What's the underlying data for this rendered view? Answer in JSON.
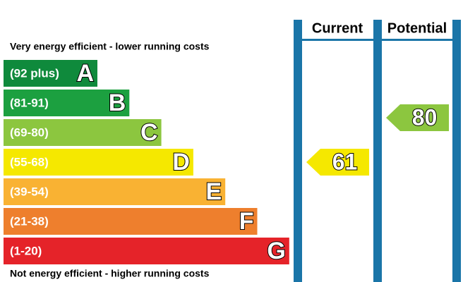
{
  "header": {
    "top_caption": "Very energy efficient - lower running costs",
    "bottom_caption": "Not energy efficient - higher running costs",
    "current_label": "Current",
    "potential_label": "Potential"
  },
  "bands": [
    {
      "range": "(92 plus)",
      "letter": "A",
      "color": "#0f8a3c"
    },
    {
      "range": "(81-91)",
      "letter": "B",
      "color": "#1ca040"
    },
    {
      "range": "(69-80)",
      "letter": "C",
      "color": "#8cc63f"
    },
    {
      "range": "(55-68)",
      "letter": "D",
      "color": "#f5e800"
    },
    {
      "range": "(39-54)",
      "letter": "E",
      "color": "#f9b233"
    },
    {
      "range": "(21-38)",
      "letter": "F",
      "color": "#ee7f2d"
    },
    {
      "range": "(1-20)",
      "letter": "G",
      "color": "#e52329"
    }
  ],
  "current": {
    "value": 61,
    "color": "#f5e800"
  },
  "potential": {
    "value": 80,
    "color": "#8cc63f"
  }
}
